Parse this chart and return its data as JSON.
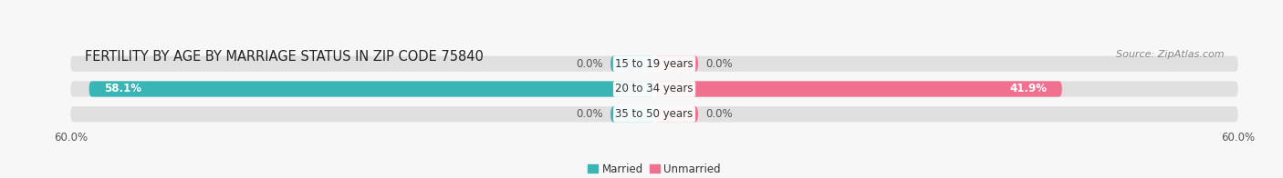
{
  "title": "FERTILITY BY AGE BY MARRIAGE STATUS IN ZIP CODE 75840",
  "source": "Source: ZipAtlas.com",
  "categories": [
    "15 to 19 years",
    "20 to 34 years",
    "35 to 50 years"
  ],
  "married_values": [
    0.0,
    58.1,
    0.0
  ],
  "unmarried_values": [
    0.0,
    41.9,
    0.0
  ],
  "married_color": "#3ab5b5",
  "unmarried_color": "#f07090",
  "bar_bg_color": "#e0e0e0",
  "married_label": "Married",
  "unmarried_label": "Unmarried",
  "xlim": 60.0,
  "title_fontsize": 10.5,
  "source_fontsize": 8,
  "label_fontsize": 8.5,
  "tick_fontsize": 8.5,
  "bar_height": 0.62,
  "background_color": "#f7f7f7",
  "bar_gap": 0.12,
  "small_bar_width": 4.5
}
